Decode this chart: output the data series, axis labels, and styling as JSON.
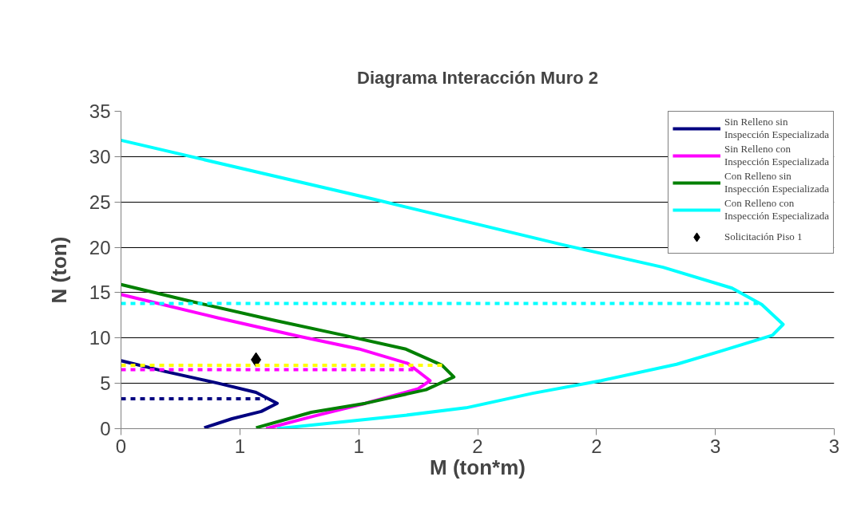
{
  "chart_data": {
    "type": "line",
    "title": "Diagrama Interacción Muro 2",
    "xlabel": "M (ton*m)",
    "ylabel": "N (ton)",
    "xlim": [
      0,
      3
    ],
    "ylim": [
      0,
      35
    ],
    "xticks": [
      0,
      {
        "value": 0.5,
        "label": "1"
      },
      1,
      {
        "value": 1.5,
        "label": "2"
      },
      2,
      {
        "value": 2.5,
        "label": "3"
      },
      3
    ],
    "yticks": [
      0,
      5,
      10,
      15,
      20,
      25,
      30,
      35
    ],
    "grid": "y",
    "legend": "top right",
    "marker": "none",
    "line_style": "solid",
    "series": [
      {
        "name": "Sin Relleno sin Inspección Especializada",
        "color": "#000080",
        "x": [
          0,
          0.187,
          0.41,
          0.568,
          0.657,
          0.59,
          0.467,
          0.35
        ],
        "values": [
          7.5,
          6.3,
          5.0,
          4.0,
          2.8,
          1.9,
          1.1,
          0.1
        ]
      },
      {
        "name": "Sin Relleno con Inspección Especializada",
        "color": "#ff00ff",
        "x": [
          0,
          0.41,
          0.746,
          1.0,
          1.206,
          1.3,
          1.25,
          1.015,
          0.813,
          0.61
        ],
        "values": [
          14.8,
          12.2,
          10.2,
          8.8,
          7.2,
          5.3,
          4.4,
          2.7,
          1.4,
          0
        ]
      },
      {
        "name": "Con Relleno sin Inspección Especializada",
        "color": "#008000",
        "x": [
          0,
          0.3,
          0.635,
          0.937,
          1.195,
          1.35,
          1.4,
          1.283,
          1.028,
          0.8,
          0.568
        ],
        "values": [
          15.9,
          14.0,
          12.0,
          10.3,
          8.8,
          7.0,
          5.7,
          4.3,
          2.8,
          1.8,
          0.1
        ]
      },
      {
        "name": "Con Relleno con Inspección Especializada",
        "color": "#00ffff",
        "x": [
          0,
          1.063,
          1.854,
          2.28,
          2.57,
          2.695,
          2.785,
          2.74,
          2.516,
          2.337,
          2.02,
          1.732,
          1.451,
          1.172,
          0.657
        ],
        "values": [
          31.8,
          25.3,
          20.3,
          17.8,
          15.5,
          13.7,
          11.5,
          10.3,
          8.5,
          7.1,
          5.3,
          3.9,
          2.3,
          1.4,
          0
        ]
      },
      {
        "name": "Solicitación Piso 1",
        "type": "scatter",
        "marker": "diamond",
        "color": "#000000",
        "x": [
          0.568
        ],
        "values": [
          7.6
        ]
      },
      {
        "color": "#00ffff",
        "line_style": "dashed",
        "x": [
          0,
          2.68
        ],
        "values": [
          13.8,
          13.8
        ]
      },
      {
        "color": "#ffff00",
        "line_style": "dashed",
        "x": [
          0,
          1.357
        ],
        "values": [
          7.0,
          7.0
        ]
      },
      {
        "color": "#ff00ff",
        "line_style": "dashed",
        "x": [
          0,
          1.23
        ],
        "values": [
          6.5,
          6.5
        ]
      },
      {
        "color": "#000080",
        "line_style": "dashed",
        "x": [
          0,
          0.61
        ],
        "values": [
          3.3,
          3.3
        ]
      }
    ]
  }
}
